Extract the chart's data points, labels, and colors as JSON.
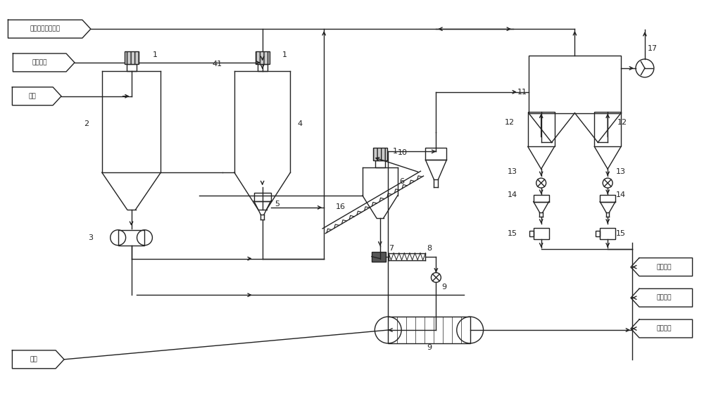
{
  "bg_color": "#ffffff",
  "line_color": "#222222",
  "labels": {
    "gasification_fly_ash": "气化飞灰来自罐车",
    "compressed_air": "压缩空气",
    "raw_coal": "原煤",
    "hot_wind": "热风",
    "compressed_air2": "压缩空气",
    "to_rotary_kiln": "去回转窑",
    "to_decomposition": "去分解炉"
  }
}
